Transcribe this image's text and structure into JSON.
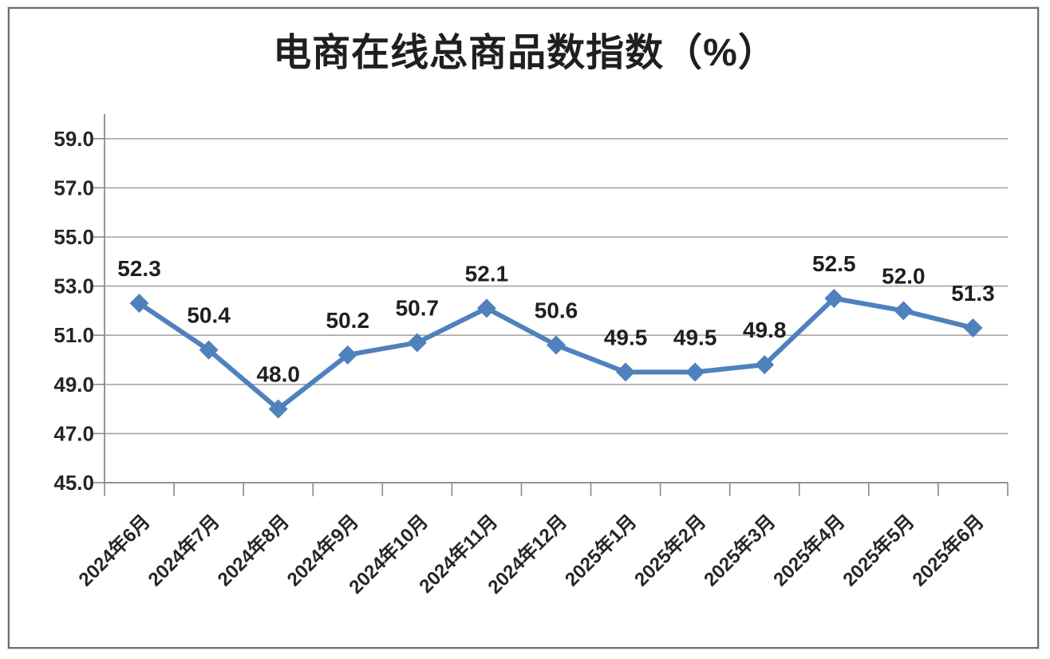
{
  "chart_data": {
    "type": "line",
    "title": "电商在线总商品数指数（%）",
    "categories": [
      "2024年6月",
      "2024年7月",
      "2024年8月",
      "2024年9月",
      "2024年10月",
      "2024年11月",
      "2024年12月",
      "2025年1月",
      "2025年2月",
      "2025年3月",
      "2025年4月",
      "2025年5月",
      "2025年6月"
    ],
    "values": [
      52.3,
      50.4,
      48.0,
      50.2,
      50.7,
      52.1,
      50.6,
      49.5,
      49.5,
      49.8,
      52.5,
      52.0,
      51.3
    ],
    "data_labels": [
      "52.3",
      "50.4",
      "48.0",
      "50.2",
      "50.7",
      "52.1",
      "50.6",
      "49.5",
      "49.5",
      "49.8",
      "52.5",
      "52.0",
      "51.3"
    ],
    "xlabel": "",
    "ylabel": "",
    "ylim": [
      45,
      60
    ],
    "ytick_values": [
      45,
      47,
      49,
      51,
      53,
      55,
      57,
      59
    ],
    "ytick_labels": [
      "45.0",
      "47.0",
      "49.0",
      "51.0",
      "53.0",
      "55.0",
      "57.0",
      "59.0"
    ],
    "grid": true,
    "legend_position": "none",
    "marker": "diamond",
    "colors": {
      "line": "#4F81BD",
      "grid": "#a6a6a6",
      "axis": "#8a8a8a",
      "tick_text": "#262626",
      "data_label_text": "#1f1f1f",
      "title_text": "#1f1f1f",
      "frame_border": "#6b6e71"
    }
  }
}
